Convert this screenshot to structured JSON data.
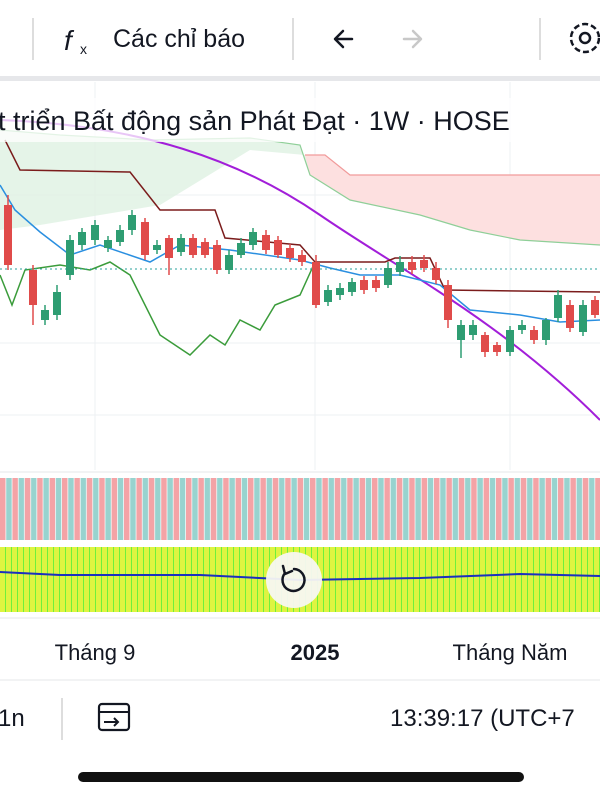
{
  "toolbar": {
    "indicators": "Các chỉ báo"
  },
  "chart": {
    "title": "t triển Bất động sản Phát Đạt · 1W · HOSE",
    "time_labels": [
      "Tháng 9",
      "2025",
      "Tháng Năm"
    ]
  },
  "footer": {
    "range": "1n",
    "clock": "13:39:17 (UTC+7"
  }
}
